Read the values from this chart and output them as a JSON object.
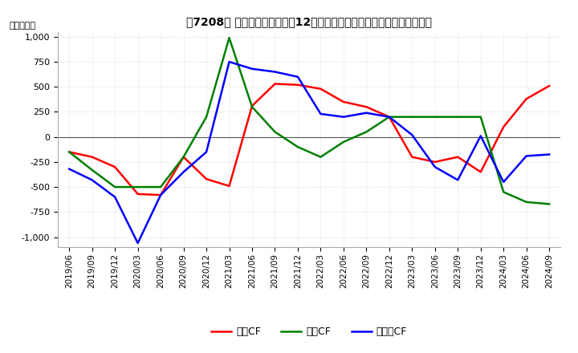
{
  "title": "【7208】 キャッシュフローの12か月移動合計の対前年同期増減額の推移",
  "ylabel": "（百万円）",
  "ylim": [
    -1100,
    1050
  ],
  "yticks": [
    -1000,
    -750,
    -500,
    -250,
    0,
    250,
    500,
    750,
    1000
  ],
  "legend_labels": [
    "営業CF",
    "投資CF",
    "フリーCF"
  ],
  "legend_colors": [
    "#ff0000",
    "#008000",
    "#0000ff"
  ],
  "dates": [
    "2019/06",
    "2019/09",
    "2019/12",
    "2020/03",
    "2020/06",
    "2020/09",
    "2020/12",
    "2021/03",
    "2021/06",
    "2021/09",
    "2021/12",
    "2022/03",
    "2022/06",
    "2022/09",
    "2022/12",
    "2023/03",
    "2023/06",
    "2023/09",
    "2023/12",
    "2024/03",
    "2024/06",
    "2024/09"
  ],
  "operating_cf": [
    -150,
    -200,
    -300,
    -570,
    -580,
    -200,
    -420,
    -490,
    310,
    530,
    520,
    480,
    350,
    300,
    200,
    -200,
    -250,
    -200,
    -350,
    100,
    380,
    510
  ],
  "investing_cf": [
    -150,
    -330,
    -500,
    -500,
    -500,
    -200,
    200,
    990,
    300,
    50,
    -100,
    -200,
    -50,
    50,
    200,
    200,
    200,
    200,
    200,
    -550,
    -650,
    -670
  ],
  "free_cf": [
    -320,
    -430,
    -600,
    -1060,
    -580,
    -350,
    -150,
    750,
    680,
    650,
    600,
    230,
    200,
    240,
    200,
    20,
    -300,
    -430,
    10,
    -450,
    -190,
    -175
  ],
  "background_color": "#ffffff",
  "grid_color": "#cccccc",
  "grid_style": ":"
}
